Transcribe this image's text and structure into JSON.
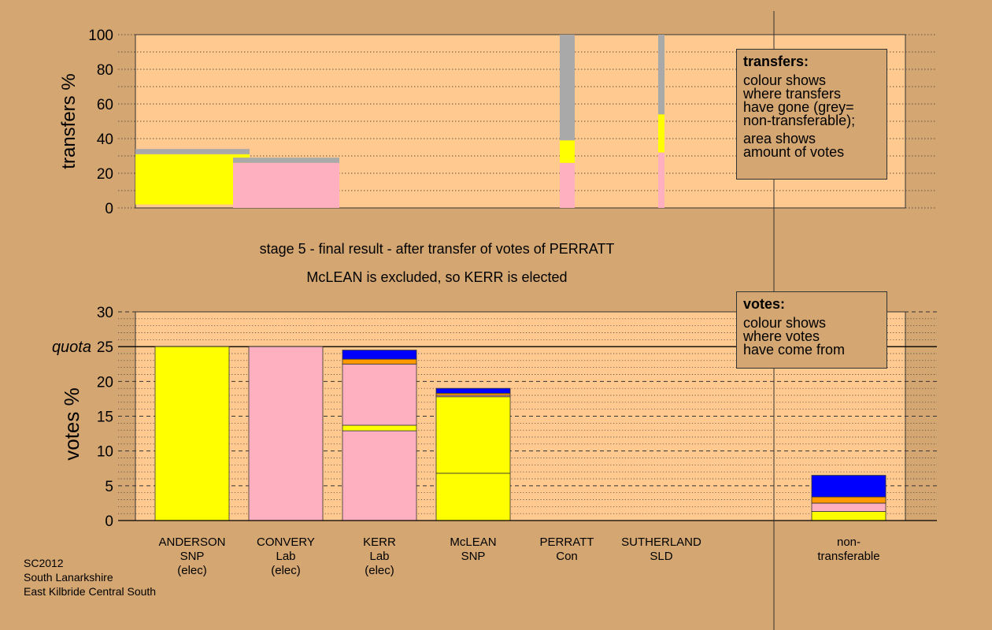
{
  "captions": {
    "stage": "stage 5 - final result - after transfer of votes of PERRATT",
    "result": "McLEAN is excluded, so KERR is elected"
  },
  "legend_transfers": {
    "title": "transfers:",
    "body1": "colour shows\nwhere transfers\nhave gone (grey=\nnon-transferable);",
    "body2": "area shows\namount of votes"
  },
  "legend_votes": {
    "title": "votes:",
    "body1": "colour shows\nwhere votes\nhave come from"
  },
  "footer": [
    "SC2012",
    "South Lanarkshire",
    "East Kilbride Central South"
  ],
  "colors": {
    "background": "#d4a672",
    "plot_background": "#ffc990",
    "SNP": "#ffff00",
    "Lab": "#ffb0c0",
    "Con": "#0000ff",
    "SLD": "#ff9900",
    "non_transferable": "#a9a9a9"
  },
  "chart_data": [
    {
      "type": "bar",
      "ylabel": "transfers %",
      "ylim": [
        0,
        100
      ],
      "yticks": [
        0,
        20,
        40,
        60,
        80,
        100
      ],
      "grid": "dotted every 10",
      "transfers": [
        {
          "source": "ANDERSON",
          "segments": [
            {
              "party": "SNP",
              "from": 2,
              "to": 31
            },
            {
              "party": "non_transferable",
              "from": 31,
              "to": 34
            }
          ]
        },
        {
          "source": "CONVERY",
          "segments": [
            {
              "party": "Lab",
              "from": 0,
              "to": 26
            },
            {
              "party": "non_transferable",
              "from": 26,
              "to": 29
            }
          ]
        },
        {
          "source": "PERRATT",
          "segments": [
            {
              "party": "Lab",
              "from": 0,
              "to": 26
            },
            {
              "party": "SNP",
              "from": 26,
              "to": 39
            },
            {
              "party": "non_transferable",
              "from": 39,
              "to": 100
            }
          ]
        },
        {
          "source": "SUTHERLAND",
          "segments": [
            {
              "party": "Lab",
              "from": 0,
              "to": 32
            },
            {
              "party": "SNP",
              "from": 32,
              "to": 54
            },
            {
              "party": "non_transferable",
              "from": 54,
              "to": 100
            }
          ]
        }
      ]
    },
    {
      "type": "bar",
      "ylabel": "votes %",
      "ylim": [
        0,
        30
      ],
      "yticks": [
        0,
        5,
        10,
        15,
        20,
        25,
        30
      ],
      "quota": 25,
      "quota_label": "quota",
      "grid": "dashed every 5, dotted every 1",
      "categories": [
        {
          "lines": [
            "ANDERSON",
            "SNP",
            "(elec)"
          ],
          "segments": [
            {
              "party": "SNP",
              "value": 25
            }
          ]
        },
        {
          "lines": [
            "CONVERY",
            "Lab",
            "(elec)"
          ],
          "segments": [
            {
              "party": "Lab",
              "value": 25
            }
          ]
        },
        {
          "lines": [
            "KERR",
            "Lab",
            "(elec)"
          ],
          "segments": [
            {
              "party": "Lab",
              "value": 12.9
            },
            {
              "party": "SNP",
              "value": 0.8
            },
            {
              "party": "Lab",
              "value": 8.8
            },
            {
              "party": "SLD",
              "value": 0.7
            },
            {
              "party": "Con",
              "value": 1.3
            }
          ]
        },
        {
          "lines": [
            "McLEAN",
            "SNP"
          ],
          "segments": [
            {
              "party": "SNP",
              "value": 6.8
            },
            {
              "party": "SNP",
              "value": 11.0
            },
            {
              "party": "Lab",
              "value": 0.2
            },
            {
              "party": "SLD",
              "value": 0.3
            },
            {
              "party": "Con",
              "value": 0.7
            }
          ]
        },
        {
          "lines": [
            "PERRATT",
            "Con"
          ],
          "segments": [
            {
              "party": "Con",
              "value": 0
            }
          ]
        },
        {
          "lines": [
            "SUTHERLAND",
            "SLD"
          ],
          "segments": [
            {
              "party": "SLD",
              "value": 0
            }
          ]
        },
        {
          "lines": [
            "non-",
            "transferable"
          ],
          "segments": [
            {
              "party": "SNP",
              "value": 1.3
            },
            {
              "party": "Lab",
              "value": 1.2
            },
            {
              "party": "SLD",
              "value": 0.9
            },
            {
              "party": "Con",
              "value": 3.1
            }
          ]
        }
      ]
    }
  ]
}
